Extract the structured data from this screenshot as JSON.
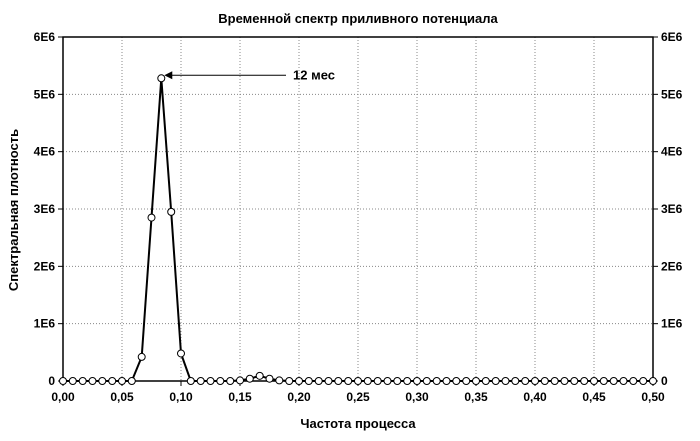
{
  "chart_data": {
    "type": "line",
    "title": "Временной спектр приливного потенциала",
    "xlabel": "Частота процесса",
    "ylabel": "Спектральная плотность",
    "xlim": [
      0.0,
      0.5
    ],
    "ylim": [
      0,
      6000000
    ],
    "x_ticks": [
      "0,00",
      "0,05",
      "0,10",
      "0,15",
      "0,20",
      "0,25",
      "0,30",
      "0,35",
      "0,40",
      "0,45",
      "0,50"
    ],
    "y_ticks": [
      "0",
      "1E6",
      "2E6",
      "3E6",
      "4E6",
      "5E6",
      "6E6"
    ],
    "grid": true,
    "marker": "circle-open",
    "annotation": {
      "text": "12 мес",
      "x": 0.0833,
      "y": 5280000
    },
    "series": [
      {
        "x": [
          0.0,
          0.0083,
          0.0167,
          0.025,
          0.0333,
          0.0417,
          0.05,
          0.0583,
          0.0667,
          0.075,
          0.0833,
          0.0917,
          0.1,
          0.1083,
          0.1167,
          0.125,
          0.1333,
          0.1417,
          0.15,
          0.1583,
          0.1667,
          0.175,
          0.1833,
          0.1917,
          0.2,
          0.2083,
          0.2167,
          0.225,
          0.2333,
          0.2417,
          0.25,
          0.2583,
          0.2667,
          0.275,
          0.2833,
          0.2917,
          0.3,
          0.3083,
          0.3167,
          0.325,
          0.3333,
          0.3417,
          0.35,
          0.3583,
          0.3667,
          0.375,
          0.3833,
          0.3917,
          0.4,
          0.4083,
          0.4167,
          0.425,
          0.4333,
          0.4417,
          0.45,
          0.4583,
          0.4667,
          0.475,
          0.4833,
          0.4917,
          0.5
        ],
        "y": [
          0,
          0,
          0,
          0,
          0,
          0,
          0,
          0,
          420000,
          2850000,
          5280000,
          2950000,
          480000,
          0,
          0,
          0,
          0,
          0,
          10000,
          40000,
          90000,
          40000,
          10000,
          0,
          0,
          0,
          0,
          0,
          0,
          0,
          0,
          0,
          0,
          0,
          0,
          0,
          0,
          0,
          0,
          0,
          0,
          0,
          0,
          0,
          0,
          0,
          0,
          0,
          0,
          0,
          0,
          0,
          0,
          0,
          0,
          0,
          0,
          0,
          0,
          0,
          0
        ]
      }
    ]
  }
}
